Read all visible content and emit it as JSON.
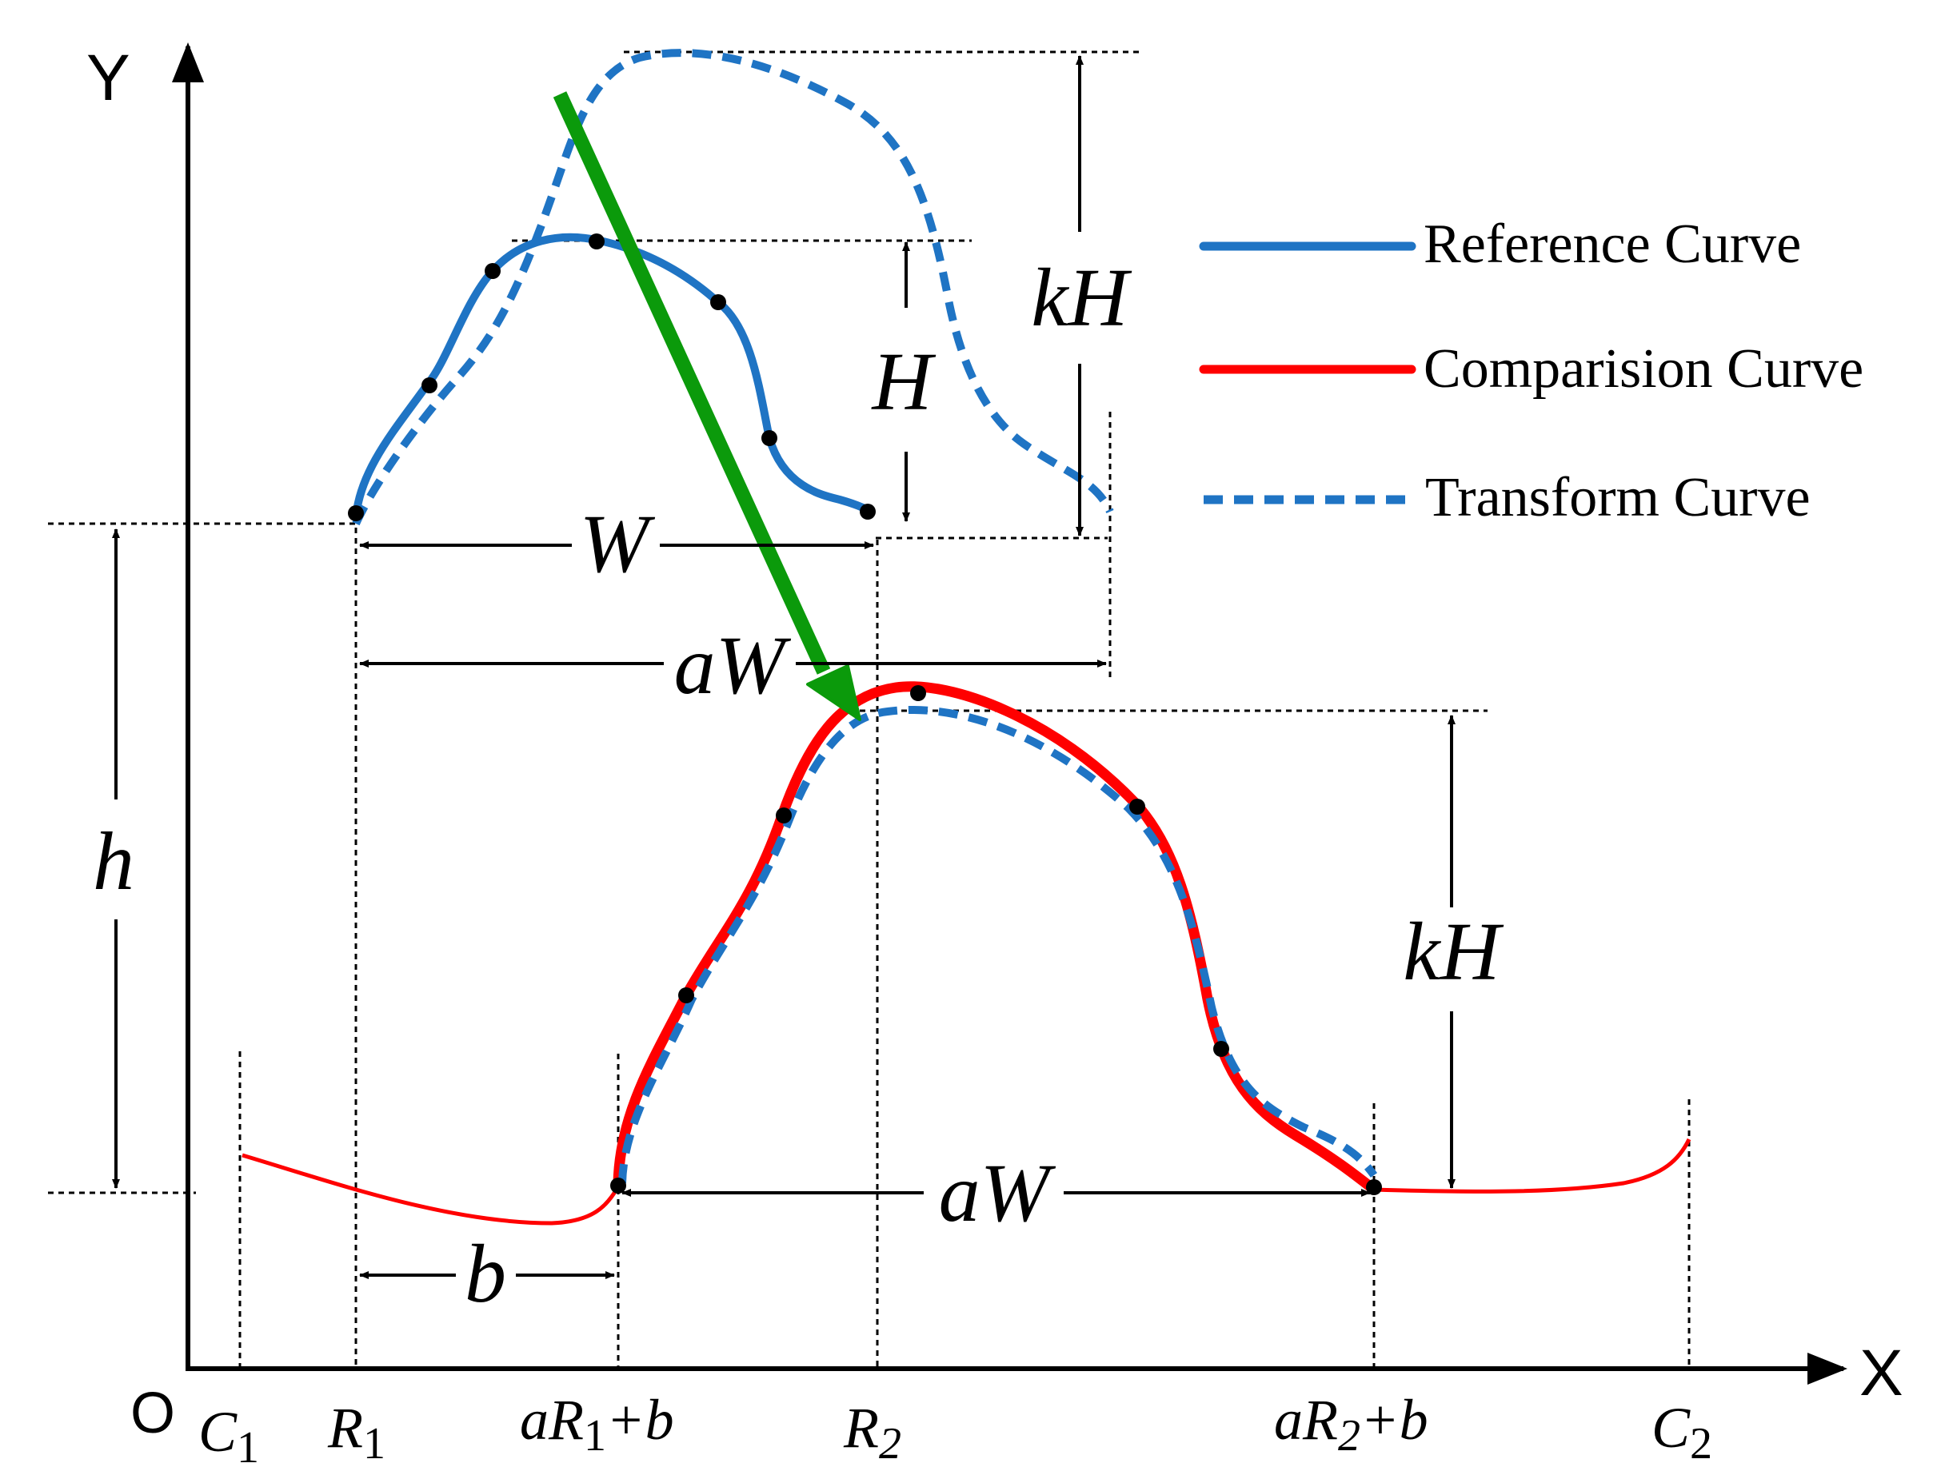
{
  "colors": {
    "reference": "#1f74c4",
    "comparison": "#ff0000",
    "transform": "#1f74c4",
    "arrow": "#0b9a0b",
    "ink": "#000000"
  },
  "axes": {
    "y_label": "Y",
    "x_label": "X",
    "origin_label": "O"
  },
  "legend": {
    "reference": "Reference Curve",
    "comparison": "Comparision Curve",
    "transform": "Transform Curve"
  },
  "x_ticks": {
    "c1": {
      "main": "C",
      "sub": "1"
    },
    "r1": {
      "main": "R",
      "sub": "1"
    },
    "ar1b": {
      "pre": "aR",
      "sub": "1",
      "post": "+b"
    },
    "r2": {
      "main": "R",
      "sub": "2"
    },
    "ar2b": {
      "pre": "aR",
      "sub": "2",
      "post": "+b"
    },
    "c2": {
      "main": "C",
      "sub": "2"
    }
  },
  "dimensions": {
    "kH_top": "kH",
    "H": "H",
    "W": "W",
    "aW_middle": "aW",
    "h": "h",
    "kH_bottom": "kH",
    "aW_bottom": "aW",
    "b": "b"
  }
}
